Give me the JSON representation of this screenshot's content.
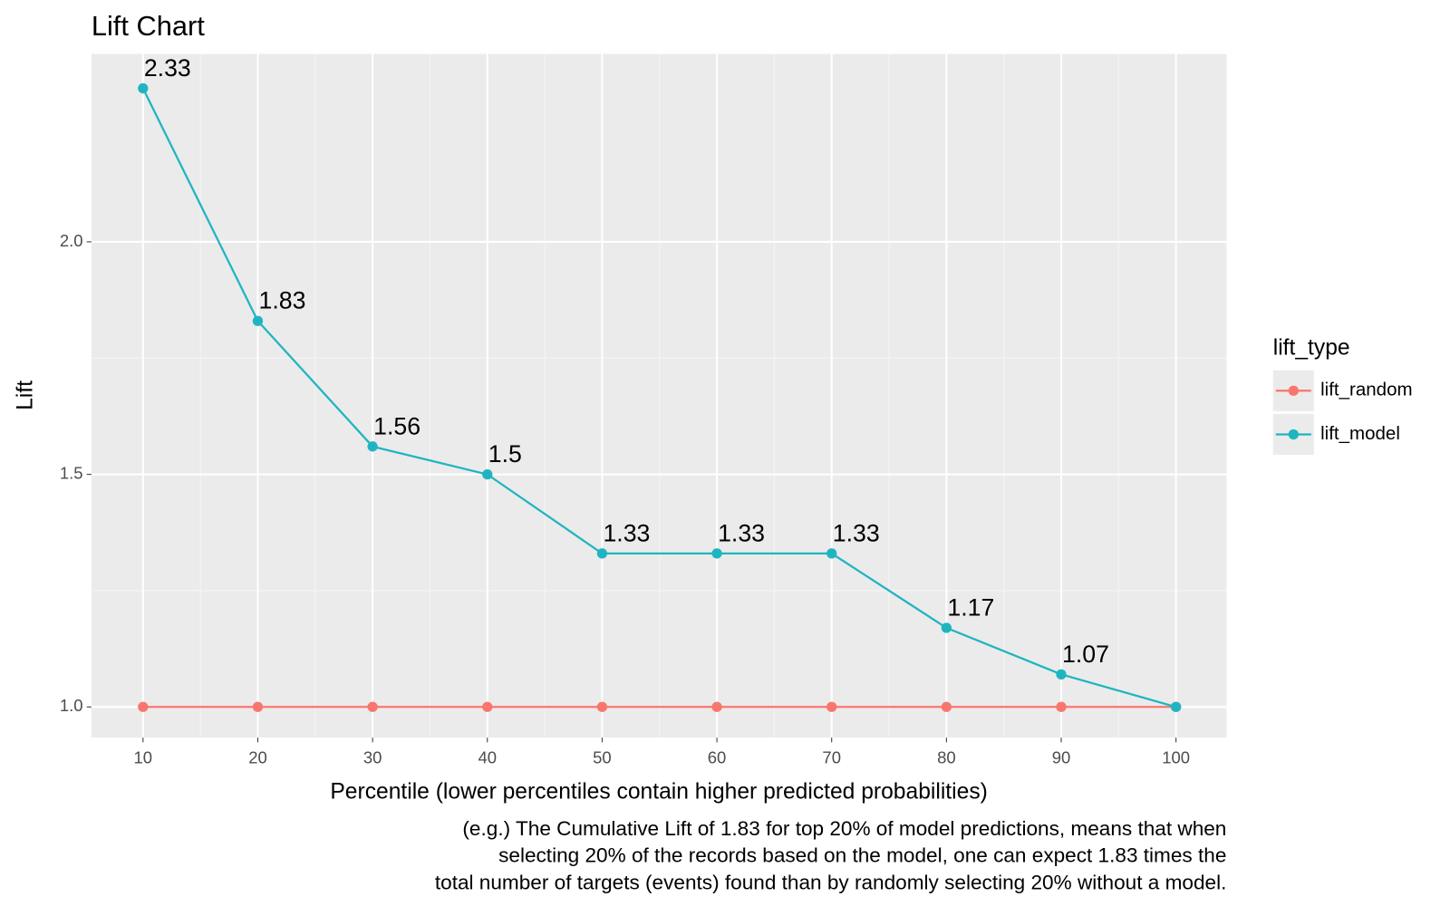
{
  "chart_data": {
    "type": "line",
    "title": "Lift Chart",
    "xlabel": "Percentile (lower percentiles contain higher predicted probabilities)",
    "ylabel": "Lift",
    "caption": [
      "(e.g.) The Cumulative Lift of 1.83 for top 20% of model predictions, means that when",
      "selecting 20% of the records based on the model, one can expect 1.83 times the",
      "total number of targets (events) found than by randomly selecting 20% without a model."
    ],
    "legend_title": "lift_type",
    "legend_position": "right",
    "grid": true,
    "x": [
      10,
      20,
      30,
      40,
      50,
      60,
      70,
      80,
      90,
      100
    ],
    "xlim": [
      5.5,
      104.4
    ],
    "xticks": [
      10,
      20,
      30,
      40,
      50,
      60,
      70,
      80,
      90,
      100
    ],
    "ylim": [
      0.934,
      2.404
    ],
    "yticks": [
      {
        "value": 1,
        "label": "1.0"
      },
      1.5,
      {
        "value": 2,
        "label": "2.0"
      }
    ],
    "series": [
      {
        "name": "lift_random",
        "color": "#F8766D",
        "values": [
          1,
          1,
          1,
          1,
          1,
          1,
          1,
          1,
          1,
          1
        ]
      },
      {
        "name": "lift_model",
        "color": "#1FB5C0",
        "values": [
          2.33,
          1.83,
          1.56,
          1.5,
          1.33,
          1.33,
          1.33,
          1.17,
          1.07,
          1.0
        ],
        "value_labels": [
          "2.33",
          "1.83",
          "1.56",
          "1.5",
          "1.33",
          "1.33",
          "1.33",
          "1.17",
          "1.07",
          null
        ]
      }
    ]
  }
}
